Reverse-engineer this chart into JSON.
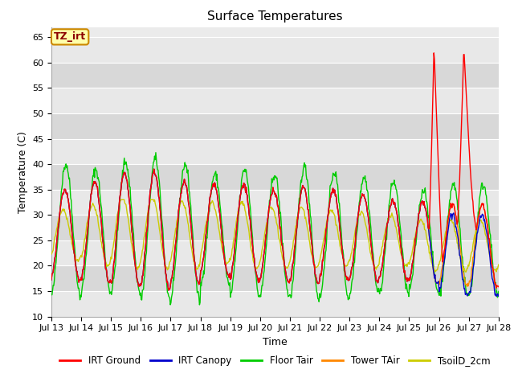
{
  "title": "Surface Temperatures",
  "xlabel": "Time",
  "ylabel": "Temperature (C)",
  "ylim": [
    10,
    67
  ],
  "xlim": [
    0,
    360
  ],
  "annotation": "TZ_irt",
  "legend": [
    "IRT Ground",
    "IRT Canopy",
    "Floor Tair",
    "Tower TAir",
    "TsoilD_2cm"
  ],
  "legend_colors": [
    "#ff0000",
    "#0000cc",
    "#00cc00",
    "#ff8800",
    "#cccc00"
  ],
  "xtick_labels": [
    "Jul 13",
    "Jul 14",
    "Jul 15",
    "Jul 16",
    "Jul 17",
    "Jul 18",
    "Jul 19",
    "Jul 20",
    "Jul 21",
    "Jul 22",
    "Jul 23",
    "Jul 24",
    "Jul 25",
    "Jul 26",
    "Jul 27",
    "Jul 28"
  ],
  "xtick_positions": [
    0,
    24,
    48,
    72,
    96,
    120,
    144,
    168,
    192,
    216,
    240,
    264,
    288,
    312,
    336,
    360
  ],
  "bg_light": "#e8e8e8",
  "bg_dark": "#d8d8d8",
  "title_fontsize": 11,
  "axis_fontsize": 9,
  "tick_fontsize": 8
}
